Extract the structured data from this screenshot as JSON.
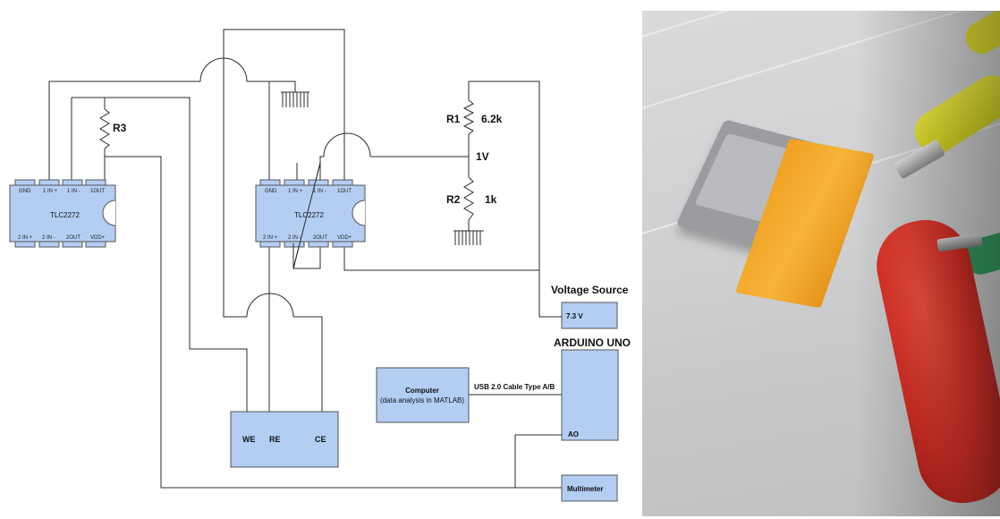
{
  "chip_left": {
    "name": "TLC2272",
    "top_pins": [
      "GND",
      "1 IN +",
      "1 IN -",
      "1OUT"
    ],
    "bottom_pins": [
      "2 IN +",
      "2 IN -",
      "2OUT",
      "VDD+"
    ]
  },
  "chip_right": {
    "name": "TLC2272",
    "top_pins": [
      "GND",
      "1 IN +",
      "1 IN -",
      "1OUT"
    ],
    "bottom_pins": [
      "2 IN +",
      "2 IN -",
      "2OUT",
      "VDD+"
    ]
  },
  "resistor_r3": {
    "label": "R3"
  },
  "divider": {
    "r1_label": "R1",
    "r1_value": "6.2k",
    "mid_voltage": "1V",
    "r2_label": "R2",
    "r2_value": "1k"
  },
  "voltage_source": {
    "title": "Voltage Source",
    "value": "7.3 V"
  },
  "arduino": {
    "title": "ARDUINO UNO",
    "pin": "AO"
  },
  "computer": {
    "line1": "Computer",
    "line2": "(data analysis in MATLAB)"
  },
  "usb_cable": {
    "label": "USB 2.0 Cable Type A/B"
  },
  "cell": {
    "we": "WE",
    "re": "RE",
    "ce": "CE"
  },
  "multimeter": {
    "label": "Multimeter"
  },
  "photo": {
    "description_icon": "photo-of-sensor-with-alligator-clips"
  },
  "colors": {
    "component_fill": "#b3cdf3",
    "wire": "#2b2b2b"
  }
}
